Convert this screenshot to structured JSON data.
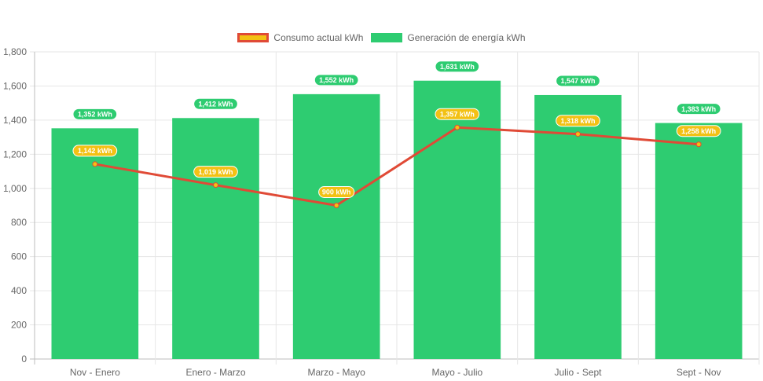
{
  "chart_data": {
    "type": "bar",
    "title": "",
    "xlabel": "",
    "ylabel": "",
    "categories": [
      "Nov - Enero",
      "Enero - Marzo",
      "Marzo - Mayo",
      "Mayo - Julio",
      "Julio - Sept",
      "Sept - Nov"
    ],
    "ylim": [
      0,
      1800
    ],
    "yticks": [
      "0",
      "200",
      "400",
      "600",
      "800",
      "1,000",
      "1,200",
      "1,400",
      "1,600",
      "1,800"
    ],
    "grid": true,
    "legend_position": "top",
    "series": [
      {
        "name": "Consumo actual kWh",
        "type": "line",
        "color": "#e04a36",
        "point_color": "#f3c114",
        "label_color": "#f3c114",
        "values": [
          1142,
          1019,
          900,
          1357,
          1318,
          1258
        ],
        "labels": [
          "1,142 kWh",
          "1,019 kWh",
          "900 kWh",
          "1,357 kWh",
          "1,318 kWh",
          "1,258 kWh"
        ]
      },
      {
        "name": "Generación de energía kWh",
        "type": "bar",
        "color": "#2ecc71",
        "label_color": "#2ecc71",
        "values": [
          1352,
          1412,
          1552,
          1631,
          1547,
          1383
        ],
        "labels": [
          "1,352 kWh",
          "1,412 kWh",
          "1,552 kWh",
          "1,631 kWh",
          "1,547 kWh",
          "1,383 kWh"
        ]
      }
    ]
  }
}
